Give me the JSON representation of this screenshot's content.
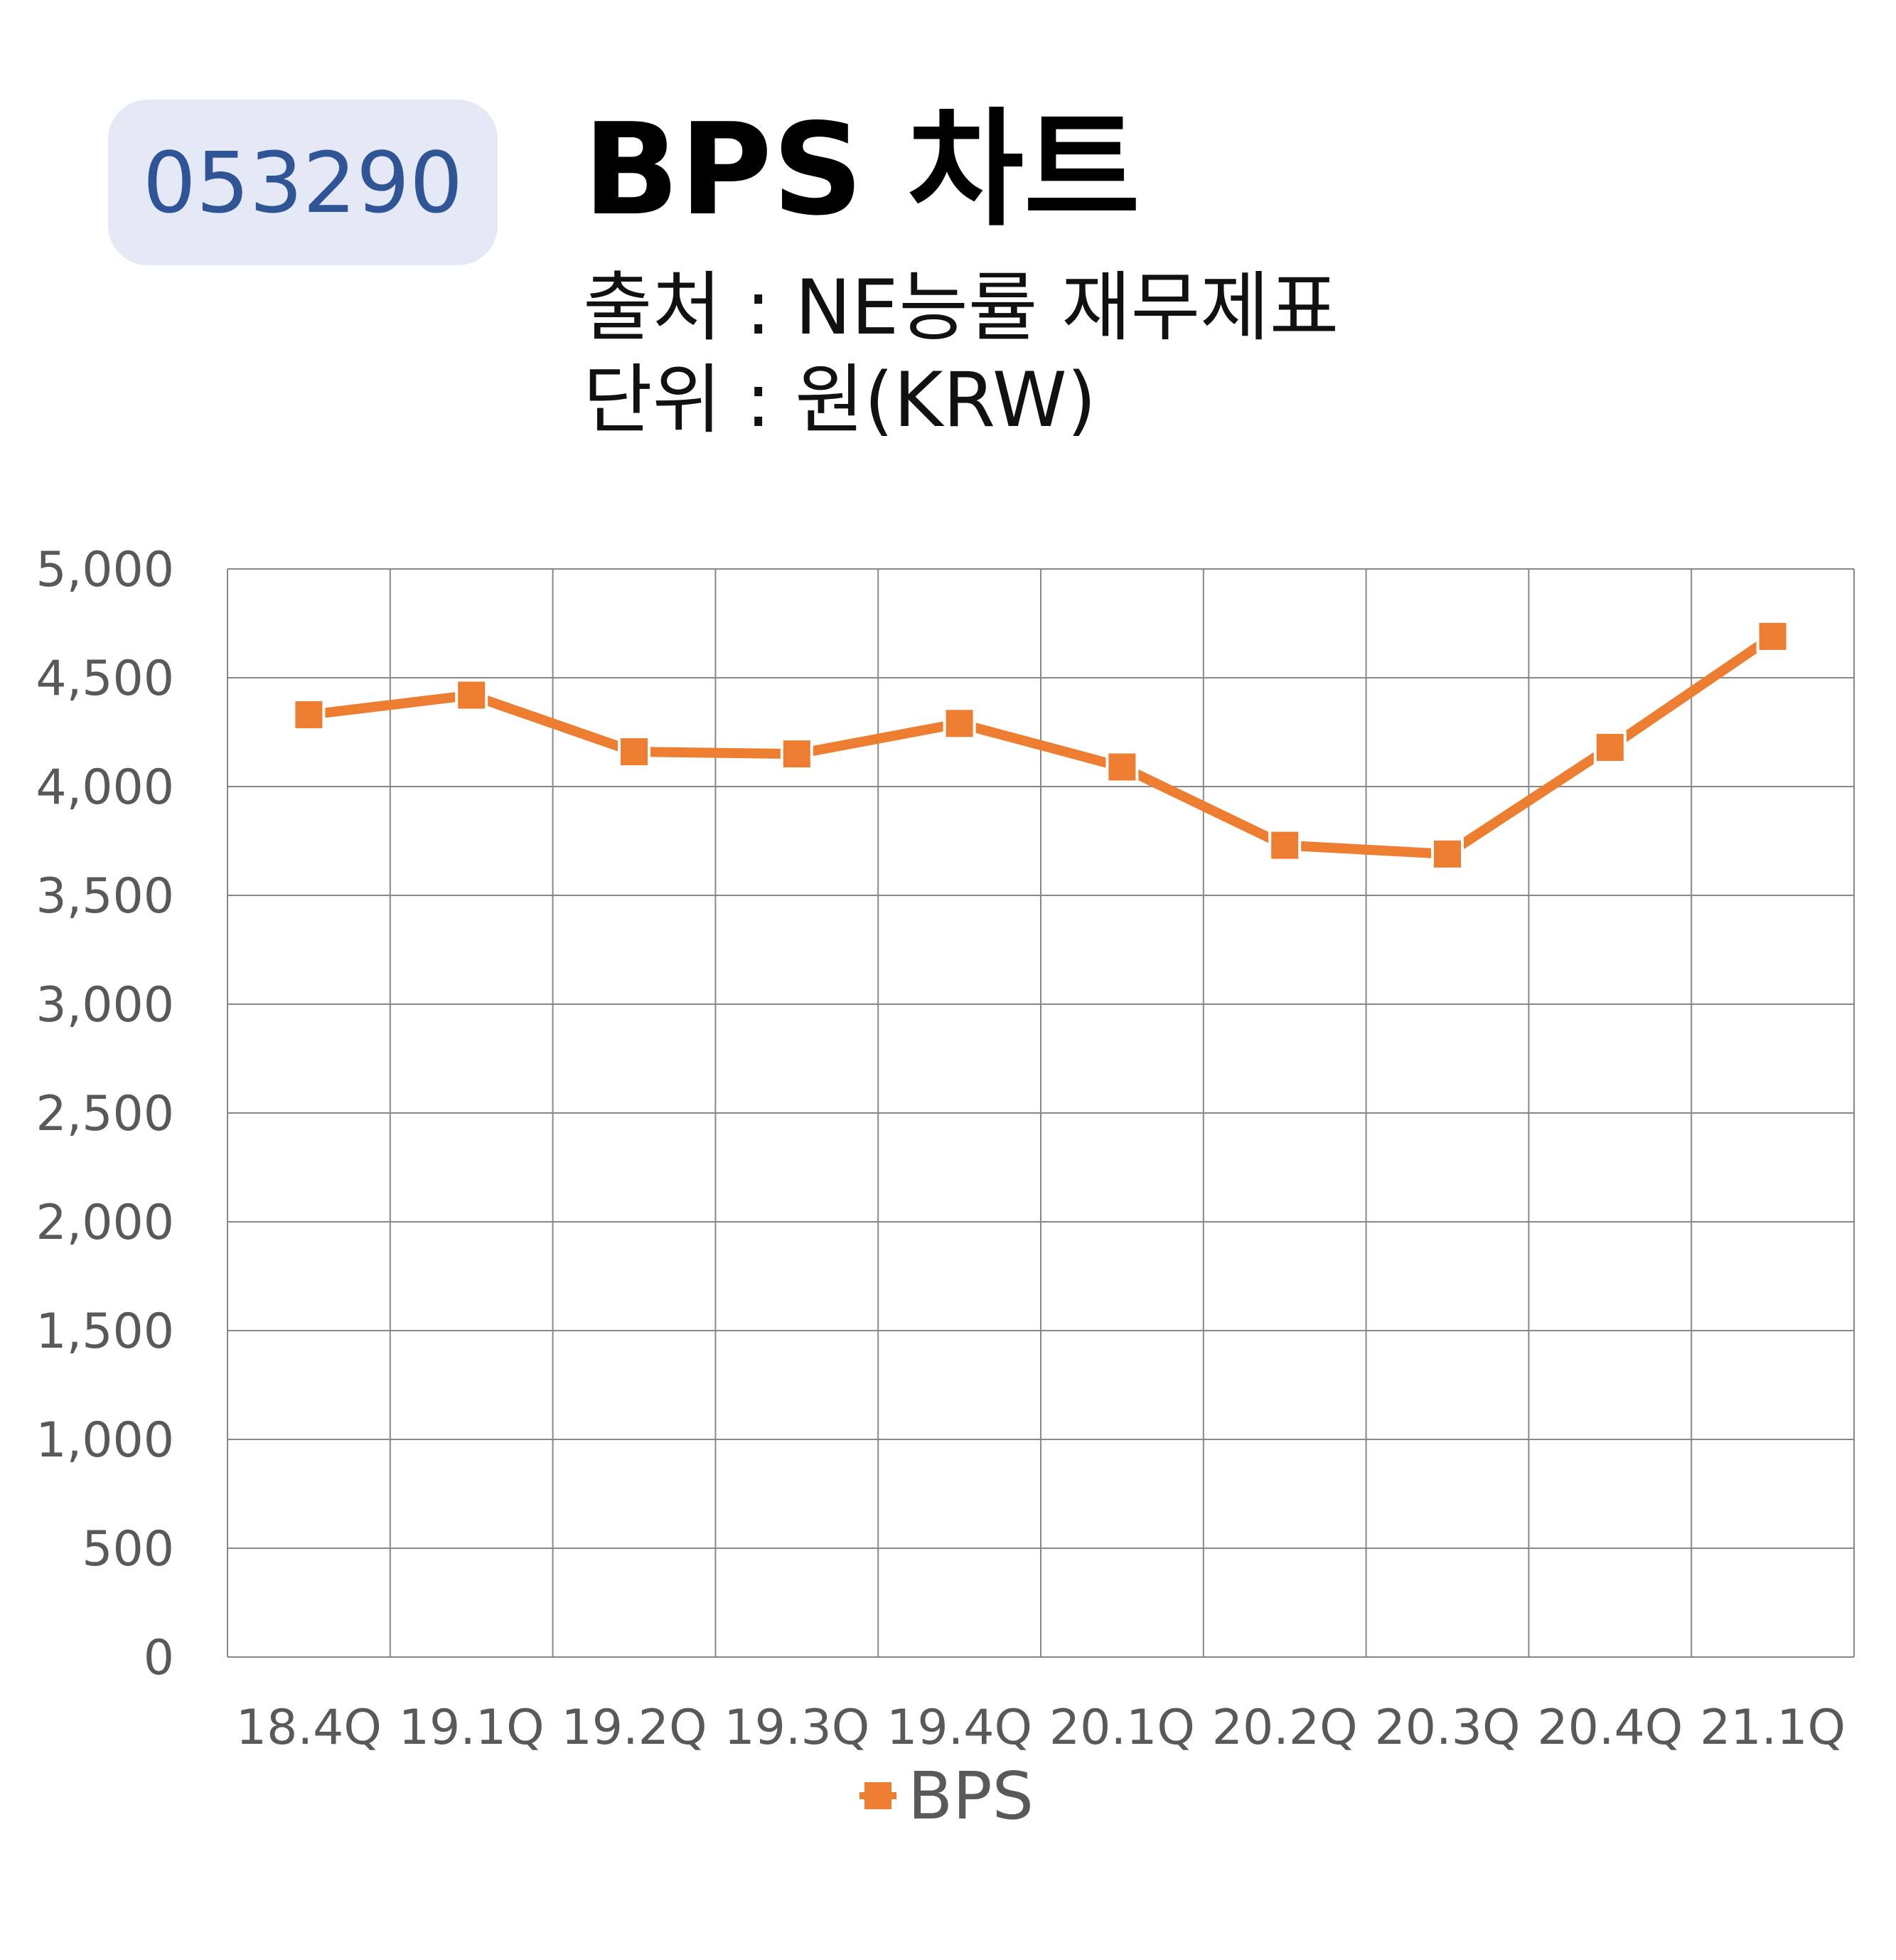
{
  "header": {
    "ticker": "053290",
    "title": "BPS 차트",
    "source": "출처 : NE능률 재무제표",
    "unit": "단위 : 원(KRW)"
  },
  "colors": {
    "badge_bg": "#e4e9f5",
    "badge_text": "#2f5597",
    "series": "#ed7d31",
    "grid": "#888888",
    "tick_text": "#595959"
  },
  "chart_data": {
    "type": "line",
    "categories": [
      "18.4Q",
      "19.1Q",
      "19.2Q",
      "19.3Q",
      "19.4Q",
      "20.1Q",
      "20.2Q",
      "20.3Q",
      "20.4Q",
      "21.1Q"
    ],
    "series": [
      {
        "name": "BPS",
        "values": [
          4330,
          4420,
          4160,
          4150,
          4290,
          4090,
          3730,
          3690,
          4180,
          4690
        ],
        "marker": "square"
      }
    ],
    "ylim": [
      0,
      5000
    ],
    "yticks": [
      0,
      500,
      1000,
      1500,
      2000,
      2500,
      3000,
      3500,
      4000,
      4500,
      5000
    ],
    "ytick_labels": [
      "0",
      "500",
      "1,000",
      "1,500",
      "2,000",
      "2,500",
      "3,000",
      "3,500",
      "4,000",
      "4,500",
      "5,000"
    ],
    "grid": true,
    "legend": "bottom"
  }
}
